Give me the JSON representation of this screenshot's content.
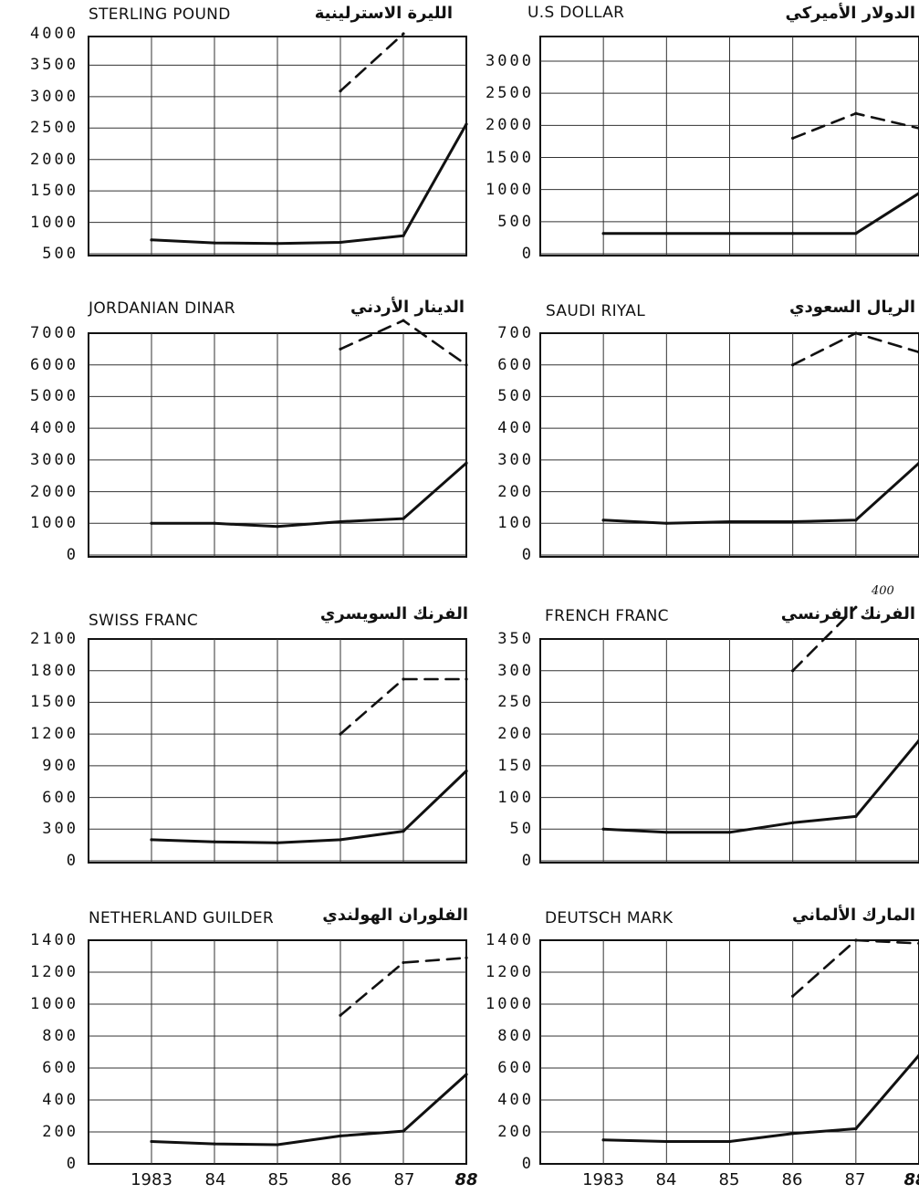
{
  "x_tick_labels": [
    "1983",
    "84",
    "85",
    "86",
    "87",
    "88"
  ],
  "chart_data": [
    {
      "type": "line",
      "title": "STERLING POUND",
      "title_ar": "الليرة الاسترلينية",
      "categories": [
        "1983",
        "84",
        "85",
        "86",
        "87",
        "88"
      ],
      "yticks": [
        "4000",
        "3500",
        "3000",
        "2500",
        "2000",
        "1500",
        "1000",
        "500"
      ],
      "ylim": [
        350,
        4000
      ],
      "series": [
        {
          "style": "solid",
          "values": [
            580,
            530,
            520,
            540,
            650,
            2500
          ]
        },
        {
          "style": "dashed",
          "values": [
            null,
            null,
            null,
            3050,
            4000,
            null
          ]
        }
      ]
    },
    {
      "type": "line",
      "title": "U.S DOLLAR",
      "title_ar": "الدولار الأميركي",
      "categories": [
        "1983",
        "84",
        "85",
        "86",
        "87",
        "88"
      ],
      "yticks": [
        "3000",
        "2500",
        "2000",
        "1500",
        "1000",
        "500",
        "0"
      ],
      "ylim": [
        0,
        3500
      ],
      "series": [
        {
          "style": "solid",
          "values": [
            370,
            370,
            370,
            370,
            370,
            1100
          ]
        },
        {
          "style": "dashed",
          "values": [
            null,
            null,
            null,
            2100,
            2550,
            2280
          ]
        }
      ]
    },
    {
      "type": "line",
      "title": "JORDANIAN DINAR",
      "title_ar": "الدينار الأردني",
      "categories": [
        "1983",
        "84",
        "85",
        "86",
        "87",
        "88"
      ],
      "yticks": [
        "7000",
        "6000",
        "5000",
        "4000",
        "3000",
        "2000",
        "1000",
        "0"
      ],
      "ylim": [
        0,
        7000
      ],
      "series": [
        {
          "style": "solid",
          "values": [
            1000,
            1000,
            900,
            1050,
            1150,
            2900
          ]
        },
        {
          "style": "dashed",
          "values": [
            null,
            null,
            null,
            6500,
            7400,
            6000
          ]
        }
      ]
    },
    {
      "type": "line",
      "title": "SAUDI RIYAL",
      "title_ar": "الريال السعودي",
      "categories": [
        "1983",
        "84",
        "85",
        "86",
        "87",
        "88"
      ],
      "yticks": [
        "700",
        "600",
        "500",
        "400",
        "300",
        "200",
        "100",
        "0"
      ],
      "ylim": [
        0,
        700
      ],
      "series": [
        {
          "style": "solid",
          "values": [
            110,
            100,
            105,
            105,
            110,
            290
          ]
        },
        {
          "style": "dashed",
          "values": [
            null,
            null,
            null,
            600,
            700,
            640
          ]
        }
      ]
    },
    {
      "type": "line",
      "title": "SWISS FRANC",
      "title_ar": "الفرنك السويسري",
      "categories": [
        "1983",
        "84",
        "85",
        "86",
        "87",
        "88"
      ],
      "yticks": [
        "2100",
        "1800",
        "1500",
        "1200",
        "900",
        "600",
        "300",
        "0"
      ],
      "ylim": [
        0,
        2100
      ],
      "series": [
        {
          "style": "solid",
          "values": [
            200,
            180,
            170,
            200,
            280,
            850
          ]
        },
        {
          "style": "dashed",
          "values": [
            null,
            null,
            null,
            1200,
            1720,
            1720
          ]
        }
      ]
    },
    {
      "type": "line",
      "title": "FRENCH FRANC",
      "title_ar": "الفرنك الفرنسي",
      "annotation": "400",
      "categories": [
        "1983",
        "84",
        "85",
        "86",
        "87",
        "88"
      ],
      "yticks": [
        "350",
        "300",
        "250",
        "200",
        "150",
        "100",
        "50",
        "0"
      ],
      "ylim": [
        0,
        350
      ],
      "series": [
        {
          "style": "solid",
          "values": [
            50,
            45,
            45,
            60,
            70,
            190
          ]
        },
        {
          "style": "dashed",
          "values": [
            null,
            null,
            null,
            300,
            400,
            null
          ]
        }
      ]
    },
    {
      "type": "line",
      "title": "NETHERLAND GUILDER",
      "title_ar": "الفلوران الهولندي",
      "categories": [
        "1983",
        "84",
        "85",
        "86",
        "87",
        "88"
      ],
      "yticks": [
        "1400",
        "1200",
        "1000",
        "800",
        "600",
        "400",
        "200",
        "0"
      ],
      "ylim": [
        0,
        1400
      ],
      "series": [
        {
          "style": "solid",
          "values": [
            140,
            125,
            120,
            175,
            205,
            560
          ]
        },
        {
          "style": "dashed",
          "values": [
            null,
            null,
            null,
            930,
            1260,
            1290
          ]
        }
      ]
    },
    {
      "type": "line",
      "title": "DEUTSCH MARK",
      "title_ar": "المارك الألماني",
      "categories": [
        "1983",
        "84",
        "85",
        "86",
        "87",
        "88"
      ],
      "yticks": [
        "1400",
        "1200",
        "1000",
        "800",
        "600",
        "400",
        "200",
        "0"
      ],
      "ylim": [
        0,
        1400
      ],
      "series": [
        {
          "style": "solid",
          "values": [
            150,
            140,
            140,
            190,
            220,
            680
          ]
        },
        {
          "style": "dashed",
          "values": [
            null,
            null,
            null,
            1050,
            1400,
            1380
          ]
        }
      ]
    }
  ]
}
